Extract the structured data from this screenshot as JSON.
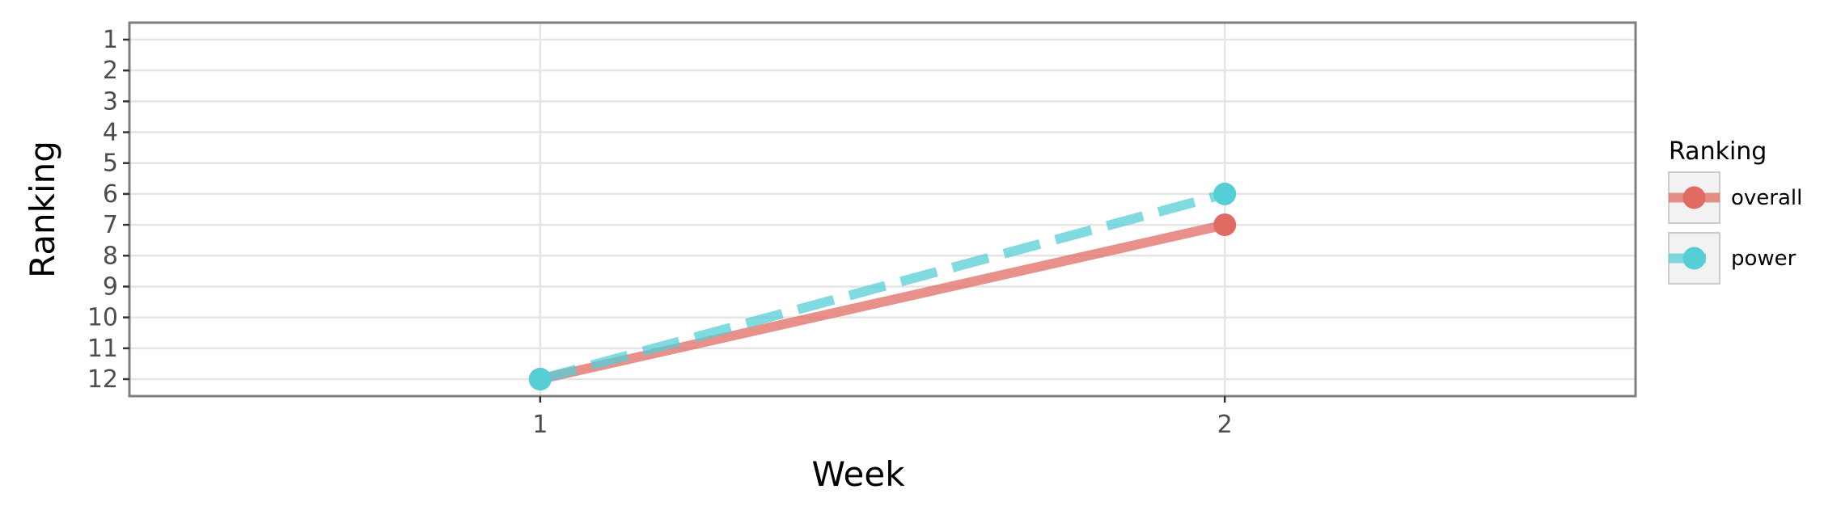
{
  "chart_data": {
    "type": "line",
    "xlabel": "Week",
    "ylabel": "Ranking",
    "x": [
      1,
      2
    ],
    "x_ticks": [
      "1",
      "2"
    ],
    "xlim": [
      0.4,
      2.6
    ],
    "y_ticks": [
      "1",
      "2",
      "3",
      "4",
      "5",
      "6",
      "7",
      "8",
      "9",
      "10",
      "11",
      "12"
    ],
    "ylim": [
      12.55,
      0.45
    ],
    "y_reversed": true,
    "grid": true,
    "legend": {
      "title": "Ranking",
      "position": "right"
    },
    "series": [
      {
        "name": "overall",
        "values": [
          12,
          7
        ],
        "color": "#e06b63",
        "line_style": "solid"
      },
      {
        "name": "power",
        "values": [
          12,
          6
        ],
        "color": "#55ced6",
        "line_style": "dashed"
      }
    ]
  }
}
